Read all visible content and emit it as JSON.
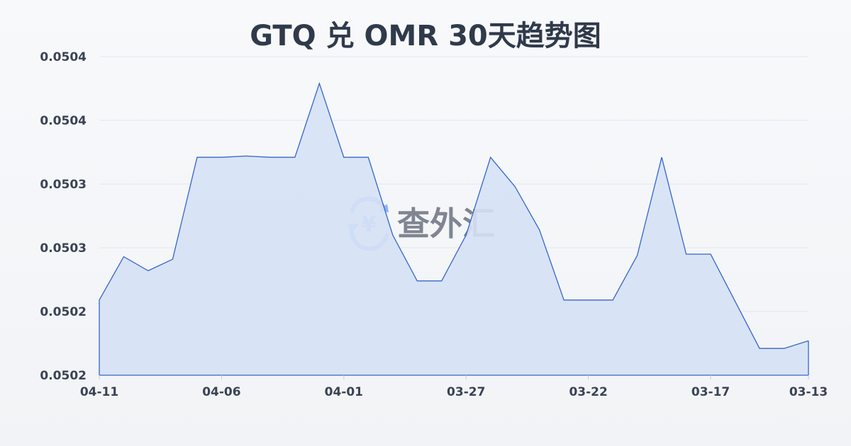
{
  "title": "GTQ 兑 OMR 30天趋势图",
  "watermark": {
    "text": "查外汇",
    "icon": "yen-exchange-icon",
    "icon_glyph": "¥"
  },
  "colors": {
    "line": "#3366cc",
    "fill": "#d6e1f5",
    "text": "#2f3a4b",
    "grid": "#e3e6eb",
    "watermark_icon": "#8ab4f8"
  },
  "chart_data": {
    "type": "area",
    "title": "GTQ 兑 OMR 30天趋势图",
    "xlabel": "",
    "ylabel": "",
    "x": [
      "04-11",
      "04-10",
      "04-09",
      "04-08",
      "04-07",
      "04-06",
      "04-05",
      "04-04",
      "04-03",
      "04-02",
      "04-01",
      "03-31",
      "03-30",
      "03-29",
      "03-28",
      "03-27",
      "03-26",
      "03-25",
      "03-24",
      "03-23",
      "03-22",
      "03-21",
      "03-20",
      "03-19",
      "03-18",
      "03-17",
      "03-16",
      "03-15",
      "03-14",
      "03-13"
    ],
    "values": [
      0.050209,
      0.050243,
      0.050232,
      0.050241,
      0.050321,
      0.050321,
      0.050322,
      0.050321,
      0.050321,
      0.050379,
      0.050321,
      0.050321,
      0.05026,
      0.050224,
      0.050224,
      0.05026,
      0.050321,
      0.050298,
      0.050264,
      0.050209,
      0.050209,
      0.050209,
      0.050244,
      0.050321,
      0.050245,
      0.050245,
      0.050208,
      0.050171,
      0.050171,
      0.050177
    ],
    "x_tick_labels": [
      "04-11",
      "04-06",
      "04-01",
      "03-27",
      "03-22",
      "03-17",
      "03-13"
    ],
    "y_ticks": [
      0.0504,
      0.05035,
      0.0503,
      0.05025,
      0.0502,
      0.05015
    ],
    "y_tick_labels": [
      "0.0504",
      "0.0504",
      "0.0503",
      "0.0503",
      "0.0502",
      "0.0502"
    ],
    "ylim": [
      0.05015,
      0.0504
    ],
    "grid": true,
    "legend": "none"
  }
}
